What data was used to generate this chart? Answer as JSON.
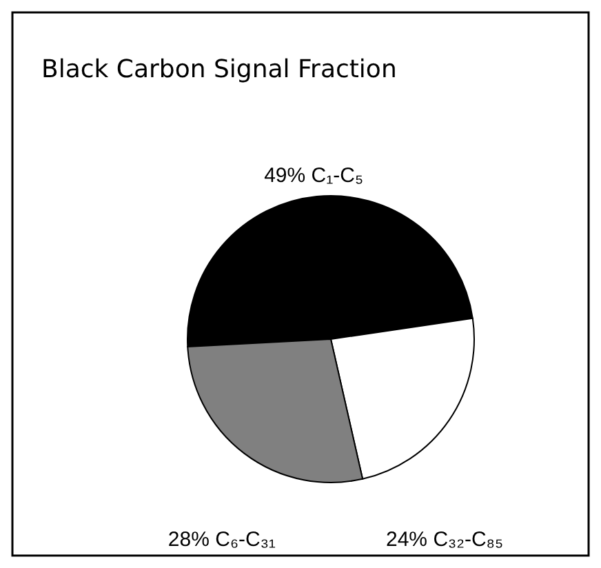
{
  "chart_data": {
    "type": "pie",
    "title": "Black Carbon Signal Fraction",
    "categories": [
      "C₁-C₅",
      "C₃₂-C₈₅",
      "C₆-C₃₁"
    ],
    "values": [
      49,
      24,
      28
    ],
    "value_labels": [
      "49%",
      "24%",
      "28%"
    ],
    "colors": [
      "#000000",
      "#ffffff",
      "#808080"
    ]
  }
}
